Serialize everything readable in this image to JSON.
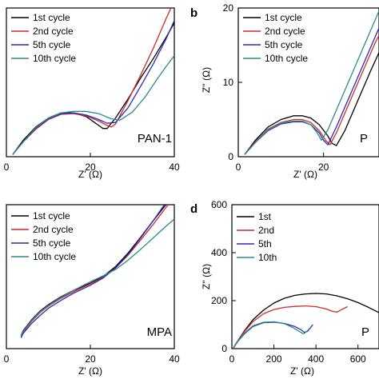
{
  "chart_data": [
    {
      "type": "line",
      "panel_label": "",
      "annotation": "PAN-1",
      "xlabel": "Z' (Ω)",
      "ylabel": "",
      "xlim": [
        0,
        40
      ],
      "ylim": [
        0,
        20
      ],
      "xticks": [
        0,
        20,
        40
      ],
      "yticks": [],
      "series": [
        {
          "name": "1st cycle",
          "color": "#000000",
          "x": [
            1.5,
            4,
            7,
            10,
            13,
            16,
            19,
            21,
            23,
            24,
            26,
            29,
            32,
            35,
            38,
            40
          ],
          "y": [
            0.3,
            2.2,
            4.0,
            5.2,
            5.9,
            5.9,
            5.4,
            4.6,
            3.8,
            3.8,
            5.2,
            7.8,
            10.6,
            13.2,
            16.0,
            18.0
          ]
        },
        {
          "name": "2nd cycle",
          "color": "#cc2b2b",
          "x": [
            1.5,
            4,
            7,
            10,
            13,
            16,
            19,
            22,
            24,
            25,
            26,
            29,
            32,
            35,
            38,
            40
          ],
          "y": [
            0.3,
            2.0,
            3.7,
            5.0,
            5.7,
            5.8,
            5.5,
            4.8,
            4.2,
            4.0,
            4.4,
            7.6,
            11.0,
            14.6,
            18.5,
            21.0
          ]
        },
        {
          "name": "5th cycle",
          "color": "#2a2ab8",
          "x": [
            1.5,
            4,
            7,
            10,
            13,
            16,
            19,
            22,
            24,
            26,
            29,
            32,
            35,
            38,
            40
          ],
          "y": [
            0.3,
            2.0,
            3.8,
            5.1,
            5.8,
            5.9,
            5.6,
            5.0,
            4.5,
            4.6,
            6.6,
            9.5,
            12.5,
            15.8,
            18.3
          ]
        },
        {
          "name": "10th cycle",
          "color": "#2a8c8c",
          "x": [
            1.5,
            4,
            7,
            10,
            13,
            16,
            19,
            22,
            25,
            27,
            30,
            33,
            36,
            38,
            40
          ],
          "y": [
            0.3,
            2.0,
            3.9,
            5.2,
            5.9,
            6.1,
            6.1,
            5.8,
            5.1,
            4.9,
            6.0,
            8.0,
            10.5,
            12.1,
            13.6
          ]
        }
      ]
    },
    {
      "type": "line",
      "panel_label": "b",
      "annotation": "P",
      "xlabel": "Z' (Ω)",
      "ylabel": "Z'' (Ω)",
      "xlim": [
        0,
        33
      ],
      "ylim": [
        0,
        20
      ],
      "xticks": [
        0,
        20
      ],
      "yticks": [
        0,
        10,
        20
      ],
      "series": [
        {
          "name": "1st cycle",
          "color": "#000000",
          "x": [
            1.5,
            4,
            7,
            10,
            13,
            15,
            17,
            19,
            21,
            22,
            23,
            25,
            28,
            31,
            33
          ],
          "y": [
            0.3,
            2.2,
            4.0,
            5.0,
            5.5,
            5.5,
            5.2,
            4.3,
            2.8,
            1.8,
            1.5,
            3.5,
            7.5,
            11.5,
            14.0
          ]
        },
        {
          "name": "2nd cycle",
          "color": "#cc2b2b",
          "x": [
            1.5,
            4,
            7,
            10,
            13,
            15,
            17,
            19,
            20.5,
            21.5,
            23,
            26,
            29,
            32,
            33
          ],
          "y": [
            0.3,
            2.0,
            3.7,
            4.6,
            5.0,
            5.0,
            4.6,
            3.5,
            2.2,
            1.6,
            3.2,
            7.2,
            11.2,
            15.2,
            16.3
          ]
        },
        {
          "name": "5th cycle",
          "color": "#2a2ab8",
          "x": [
            1.5,
            4,
            7,
            10,
            13,
            15,
            17,
            19,
            20,
            21,
            23,
            26,
            29,
            32,
            33
          ],
          "y": [
            0.3,
            1.9,
            3.5,
            4.4,
            4.7,
            4.7,
            4.3,
            3.2,
            2.2,
            1.6,
            4.0,
            8.0,
            12.0,
            16.0,
            17.3
          ]
        },
        {
          "name": "10th cycle",
          "color": "#2a8c8c",
          "x": [
            1.5,
            4,
            7,
            10,
            13,
            15,
            17,
            18.5,
            19.5,
            21,
            24,
            27,
            30,
            33
          ],
          "y": [
            0.3,
            1.9,
            3.6,
            4.5,
            4.8,
            4.8,
            4.3,
            3.2,
            2.2,
            3.6,
            7.6,
            11.6,
            15.6,
            19.6
          ]
        }
      ]
    },
    {
      "type": "line",
      "panel_label": "",
      "annotation": "MPA",
      "xlabel": "Z' (Ω)",
      "ylabel": "",
      "xlim": [
        0,
        40
      ],
      "ylim": [
        0,
        20
      ],
      "xticks": [
        0,
        20,
        40
      ],
      "yticks": [],
      "series": [
        {
          "name": "1st cycle",
          "color": "#000000",
          "x": [
            3.5,
            4,
            6,
            8,
            10,
            13,
            16,
            20,
            23,
            26,
            29,
            32,
            35,
            38,
            40
          ],
          "y": [
            1.8,
            2.5,
            4.0,
            5.2,
            6.1,
            7.2,
            8.1,
            9.1,
            10.0,
            11.4,
            13.3,
            15.5,
            17.8,
            20.0,
            21.5
          ]
        },
        {
          "name": "2nd cycle",
          "color": "#cc2b2b",
          "x": [
            3.5,
            4,
            6,
            8,
            10,
            13,
            16,
            20,
            23,
            26,
            29,
            32,
            35,
            38,
            40
          ],
          "y": [
            1.6,
            2.3,
            3.8,
            5.0,
            5.9,
            7.0,
            7.9,
            9.0,
            9.9,
            11.2,
            13.0,
            15.1,
            17.3,
            19.6,
            21.1
          ]
        },
        {
          "name": "5th cycle",
          "color": "#2a2ab8",
          "x": [
            3.5,
            4,
            6,
            8,
            10,
            13,
            16,
            20,
            23,
            26,
            29,
            32,
            35,
            38,
            40
          ],
          "y": [
            1.5,
            2.1,
            3.5,
            4.6,
            5.6,
            6.7,
            7.7,
            8.8,
            9.8,
            11.2,
            13.1,
            15.4,
            17.8,
            20.3,
            22.0
          ]
        },
        {
          "name": "10th cycle",
          "color": "#2a8c8c",
          "x": [
            3.5,
            4,
            6,
            8,
            10,
            13,
            16,
            20,
            23,
            26,
            29,
            32,
            35,
            38,
            40
          ],
          "y": [
            1.7,
            2.4,
            3.9,
            5.1,
            6.0,
            7.1,
            8.1,
            9.3,
            10.1,
            11.0,
            12.3,
            13.8,
            15.4,
            17.0,
            18.0
          ]
        }
      ]
    },
    {
      "type": "line",
      "panel_label": "d",
      "annotation": "P",
      "xlabel": "Z' (Ω)",
      "ylabel": "Z'' (Ω)",
      "xlim": [
        0,
        700
      ],
      "ylim": [
        0,
        600
      ],
      "xticks": [
        0,
        200,
        400,
        600
      ],
      "yticks": [
        0,
        200,
        400,
        600
      ],
      "series": [
        {
          "name": "1st",
          "color": "#000000",
          "x": [
            5,
            30,
            60,
            100,
            150,
            200,
            250,
            300,
            350,
            400,
            450,
            500,
            550,
            600,
            650,
            700
          ],
          "y": [
            0,
            35,
            75,
            120,
            160,
            190,
            210,
            222,
            228,
            230,
            228,
            220,
            208,
            192,
            172,
            150
          ]
        },
        {
          "name": "2nd",
          "color": "#cc2b2b",
          "x": [
            5,
            30,
            60,
            100,
            150,
            200,
            250,
            300,
            350,
            400,
            450,
            480,
            500,
            520,
            550
          ],
          "y": [
            0,
            35,
            72,
            112,
            145,
            163,
            172,
            176,
            178,
            175,
            165,
            155,
            152,
            162,
            175
          ]
        },
        {
          "name": "5th",
          "color": "#2a2ab8",
          "x": [
            5,
            30,
            60,
            100,
            150,
            200,
            250,
            300,
            330,
            345,
            360,
            375,
            385
          ],
          "y": [
            0,
            32,
            62,
            92,
            108,
            110,
            105,
            92,
            78,
            68,
            72,
            88,
            100
          ]
        },
        {
          "name": "10th",
          "color": "#2a8c8c",
          "x": [
            5,
            30,
            60,
            100,
            150,
            200,
            250,
            290,
            320,
            340,
            355,
            370
          ],
          "y": [
            0,
            33,
            65,
            95,
            110,
            112,
            104,
            88,
            72,
            62,
            70,
            85
          ]
        }
      ]
    }
  ]
}
